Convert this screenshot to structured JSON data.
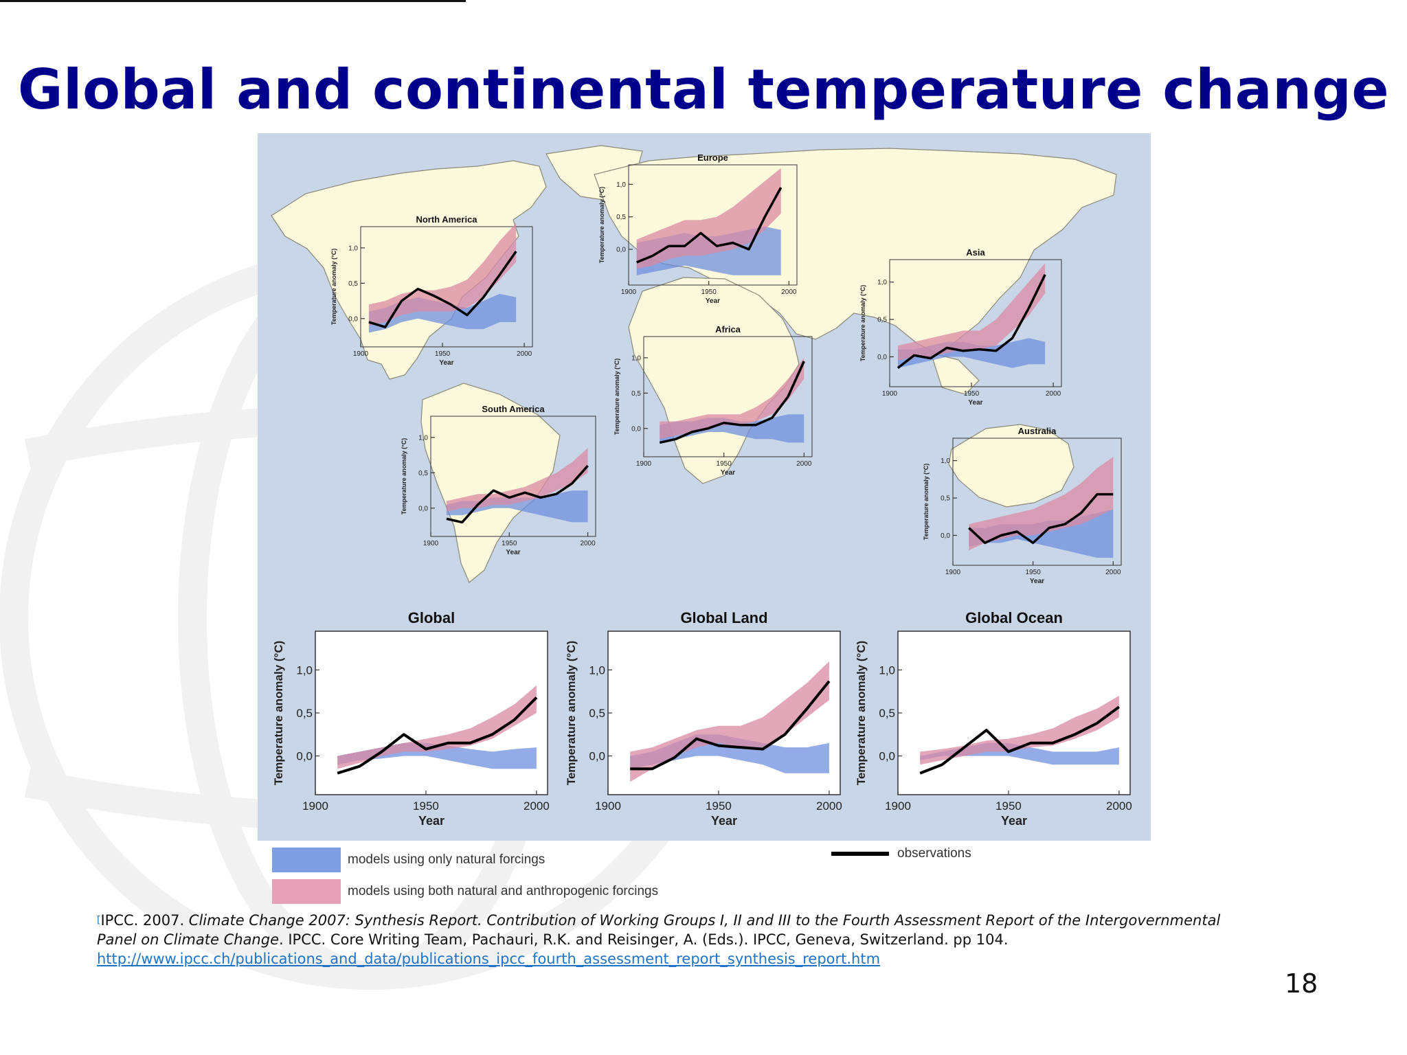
{
  "slide": {
    "title": "Global and continental temperature change",
    "page_number": "18"
  },
  "legend": {
    "natural": "models using only natural forcings",
    "both": "models using both natural and anthropogenic forcings",
    "obs": "observations"
  },
  "citation": {
    "marker": "[",
    "part1": "IPCC. 2007. ",
    "title_italic": "Climate Change 2007: Synthesis Report. Contribution of Working Groups I, II and III to the Fourth Assessment Report of the Intergovernmental Panel on Climate Change",
    "part2": ". IPCC. Core Writing Team, Pachauri, R.K. and Reisinger, A. (Eds.). IPCC, Geneva, Switzerland. pp 104. ",
    "link": "http://www.ipcc.ch/publications_and_data/publications_ipcc_fourth_assessment_report_synthesis_report.htm"
  },
  "colors": {
    "ocean": "#c9d6e8",
    "land": "#fdf9dc",
    "natural": "#6f8fde",
    "both": "#d98aa3",
    "title": "#00008b",
    "obs": "#000000"
  },
  "chart_data": [
    {
      "type": "area",
      "title": "North America",
      "xlabel": "Year",
      "ylabel": "Temperature anomaly (°C)",
      "xticks": [
        "1900",
        "1950",
        "2000"
      ],
      "yticks": [
        "0,0",
        "0,5",
        "1,0"
      ],
      "xlim": [
        1900,
        2005
      ],
      "ylim": [
        -0.4,
        1.3
      ],
      "x": [
        1905,
        1915,
        1925,
        1935,
        1945,
        1955,
        1965,
        1975,
        1985,
        1995
      ],
      "observations": [
        -0.05,
        -0.12,
        0.25,
        0.42,
        0.32,
        0.2,
        0.05,
        0.3,
        0.62,
        0.95
      ],
      "natural_low": [
        -0.2,
        -0.15,
        -0.05,
        0.0,
        -0.05,
        -0.1,
        -0.15,
        -0.15,
        -0.05,
        -0.05
      ],
      "natural_high": [
        0.1,
        0.15,
        0.25,
        0.3,
        0.25,
        0.2,
        0.15,
        0.25,
        0.35,
        0.3
      ],
      "both_low": [
        -0.1,
        -0.05,
        0.05,
        0.1,
        0.1,
        0.1,
        0.15,
        0.3,
        0.55,
        0.8
      ],
      "both_high": [
        0.2,
        0.25,
        0.35,
        0.4,
        0.4,
        0.45,
        0.55,
        0.8,
        1.1,
        1.35
      ]
    },
    {
      "type": "area",
      "title": "Europe",
      "xlabel": "Year",
      "ylabel": "Temperature anomaly (°C)",
      "xticks": [
        "1900",
        "1950",
        "2000"
      ],
      "yticks": [
        "0,0",
        "0,5",
        "1,0"
      ],
      "xlim": [
        1900,
        2005
      ],
      "ylim": [
        -0.55,
        1.3
      ],
      "x": [
        1905,
        1915,
        1925,
        1935,
        1945,
        1955,
        1965,
        1975,
        1985,
        1995
      ],
      "observations": [
        -0.2,
        -0.1,
        0.05,
        0.05,
        0.25,
        0.05,
        0.1,
        0.0,
        0.5,
        0.95
      ],
      "natural_low": [
        -0.4,
        -0.35,
        -0.3,
        -0.25,
        -0.3,
        -0.35,
        -0.4,
        -0.4,
        -0.4,
        -0.4
      ],
      "natural_high": [
        0.1,
        0.15,
        0.2,
        0.25,
        0.2,
        0.2,
        0.25,
        0.3,
        0.35,
        0.3
      ],
      "both_low": [
        -0.3,
        -0.25,
        -0.15,
        -0.1,
        -0.1,
        -0.05,
        0.0,
        0.1,
        0.3,
        0.55
      ],
      "both_high": [
        0.15,
        0.25,
        0.35,
        0.45,
        0.45,
        0.5,
        0.65,
        0.85,
        1.05,
        1.25
      ]
    },
    {
      "type": "area",
      "title": "Asia",
      "xlabel": "Year",
      "ylabel": "Temperature anomaly (°C)",
      "xticks": [
        "1900",
        "1950",
        "2000"
      ],
      "yticks": [
        "0,0",
        "0,5",
        "1,0"
      ],
      "xlim": [
        1900,
        2005
      ],
      "ylim": [
        -0.4,
        1.3
      ],
      "x": [
        1905,
        1915,
        1925,
        1935,
        1945,
        1955,
        1965,
        1975,
        1985,
        1995
      ],
      "observations": [
        -0.15,
        0.02,
        -0.02,
        0.12,
        0.08,
        0.1,
        0.08,
        0.25,
        0.65,
        1.1
      ],
      "natural_low": [
        -0.15,
        -0.1,
        -0.05,
        0.0,
        0.0,
        -0.05,
        -0.1,
        -0.15,
        -0.1,
        -0.1
      ],
      "natural_high": [
        0.1,
        0.1,
        0.15,
        0.2,
        0.2,
        0.15,
        0.15,
        0.2,
        0.25,
        0.2
      ],
      "both_low": [
        -0.05,
        0.0,
        0.0,
        0.05,
        0.1,
        0.1,
        0.15,
        0.35,
        0.55,
        0.85
      ],
      "both_high": [
        0.15,
        0.2,
        0.25,
        0.3,
        0.35,
        0.35,
        0.5,
        0.75,
        1.0,
        1.25
      ]
    },
    {
      "type": "area",
      "title": "Africa",
      "xlabel": "Year",
      "ylabel": "Temperature anomaly (°C)",
      "xticks": [
        "1900",
        "1950",
        "2000"
      ],
      "yticks": [
        "0,0",
        "0,5",
        "1,0"
      ],
      "xlim": [
        1900,
        2005
      ],
      "ylim": [
        -0.4,
        1.3
      ],
      "x": [
        1910,
        1920,
        1930,
        1940,
        1950,
        1960,
        1970,
        1980,
        1990,
        2000
      ],
      "observations": [
        -0.2,
        -0.15,
        -0.05,
        0.0,
        0.08,
        0.05,
        0.05,
        0.15,
        0.45,
        0.95
      ],
      "natural_low": [
        -0.2,
        -0.15,
        -0.1,
        -0.05,
        -0.05,
        -0.1,
        -0.15,
        -0.15,
        -0.2,
        -0.2
      ],
      "natural_high": [
        0.05,
        0.1,
        0.1,
        0.15,
        0.15,
        0.1,
        0.1,
        0.15,
        0.2,
        0.2
      ],
      "both_low": [
        -0.15,
        -0.1,
        -0.05,
        0.0,
        0.05,
        0.05,
        0.1,
        0.2,
        0.4,
        0.7
      ],
      "both_high": [
        0.1,
        0.1,
        0.15,
        0.2,
        0.2,
        0.2,
        0.3,
        0.45,
        0.7,
        1.0
      ]
    },
    {
      "type": "area",
      "title": "South America",
      "xlabel": "Year",
      "ylabel": "Temperature anomaly (°C)",
      "xticks": [
        "1900",
        "1950",
        "2000"
      ],
      "yticks": [
        "0,0",
        "0,5",
        "1,0"
      ],
      "xlim": [
        1900,
        2005
      ],
      "ylim": [
        -0.4,
        1.3
      ],
      "x": [
        1910,
        1920,
        1930,
        1940,
        1950,
        1960,
        1970,
        1980,
        1990,
        2000
      ],
      "observations": [
        -0.15,
        -0.2,
        0.05,
        0.25,
        0.15,
        0.22,
        0.15,
        0.2,
        0.35,
        0.6
      ],
      "natural_low": [
        -0.1,
        -0.1,
        -0.05,
        0.0,
        0.0,
        -0.05,
        -0.1,
        -0.15,
        -0.2,
        -0.2
      ],
      "natural_high": [
        0.05,
        0.1,
        0.1,
        0.15,
        0.15,
        0.15,
        0.15,
        0.2,
        0.25,
        0.25
      ],
      "both_low": [
        -0.05,
        0.0,
        0.0,
        0.05,
        0.05,
        0.1,
        0.15,
        0.25,
        0.35,
        0.5
      ],
      "both_high": [
        0.1,
        0.15,
        0.2,
        0.2,
        0.25,
        0.3,
        0.4,
        0.5,
        0.65,
        0.85
      ]
    },
    {
      "type": "area",
      "title": "Australia",
      "xlabel": "Year",
      "ylabel": "Temperature anomaly (°C)",
      "xticks": [
        "1900",
        "1950",
        "2000"
      ],
      "yticks": [
        "0,0",
        "0,5",
        "1,0"
      ],
      "xlim": [
        1900,
        2005
      ],
      "ylim": [
        -0.4,
        1.3
      ],
      "x": [
        1910,
        1920,
        1930,
        1940,
        1950,
        1960,
        1970,
        1980,
        1990,
        2000
      ],
      "observations": [
        0.1,
        -0.1,
        0.0,
        0.05,
        -0.1,
        0.1,
        0.15,
        0.3,
        0.55,
        0.55
      ],
      "natural_low": [
        -0.15,
        -0.1,
        -0.1,
        -0.05,
        -0.1,
        -0.15,
        -0.2,
        -0.25,
        -0.3,
        -0.3
      ],
      "natural_high": [
        0.1,
        0.1,
        0.15,
        0.15,
        0.15,
        0.2,
        0.2,
        0.25,
        0.3,
        0.35
      ],
      "both_low": [
        -0.2,
        -0.1,
        -0.05,
        0.0,
        0.0,
        0.05,
        0.1,
        0.15,
        0.25,
        0.35
      ],
      "both_high": [
        0.15,
        0.2,
        0.25,
        0.3,
        0.35,
        0.45,
        0.55,
        0.7,
        0.9,
        1.05
      ]
    },
    {
      "type": "area",
      "title": "Global",
      "xlabel": "Year",
      "ylabel": "Temperature anomaly (°C)",
      "xticks": [
        "1900",
        "1950",
        "2000"
      ],
      "yticks": [
        "0,0",
        "0,5",
        "1,0"
      ],
      "xlim": [
        1900,
        2005
      ],
      "ylim": [
        -0.45,
        1.45
      ],
      "x": [
        1910,
        1920,
        1930,
        1940,
        1950,
        1960,
        1970,
        1980,
        1990,
        2000
      ],
      "observations": [
        -0.2,
        -0.12,
        0.05,
        0.25,
        0.08,
        0.15,
        0.15,
        0.25,
        0.42,
        0.68
      ],
      "natural_low": [
        -0.1,
        -0.05,
        -0.03,
        0.0,
        0.0,
        -0.05,
        -0.1,
        -0.15,
        -0.15,
        -0.15
      ],
      "natural_high": [
        0.0,
        0.05,
        0.1,
        0.15,
        0.15,
        0.12,
        0.08,
        0.05,
        0.08,
        0.1
      ],
      "both_low": [
        -0.15,
        -0.08,
        0.0,
        0.05,
        0.05,
        0.08,
        0.12,
        0.2,
        0.35,
        0.5
      ],
      "both_high": [
        0.0,
        0.05,
        0.1,
        0.15,
        0.2,
        0.25,
        0.32,
        0.45,
        0.6,
        0.82
      ]
    },
    {
      "type": "area",
      "title": "Global Land",
      "xlabel": "Year",
      "ylabel": "Temperature anomaly (°C)",
      "xticks": [
        "1900",
        "1950",
        "2000"
      ],
      "yticks": [
        "0,0",
        "0,5",
        "1,0"
      ],
      "xlim": [
        1900,
        2005
      ],
      "ylim": [
        -0.45,
        1.45
      ],
      "x": [
        1910,
        1920,
        1930,
        1940,
        1950,
        1960,
        1970,
        1980,
        1990,
        2000
      ],
      "observations": [
        -0.15,
        -0.15,
        -0.02,
        0.2,
        0.12,
        0.1,
        0.08,
        0.25,
        0.55,
        0.87
      ],
      "natural_low": [
        -0.15,
        -0.1,
        -0.05,
        0.0,
        0.0,
        -0.05,
        -0.1,
        -0.2,
        -0.2,
        -0.2
      ],
      "natural_high": [
        0.0,
        0.05,
        0.15,
        0.25,
        0.25,
        0.2,
        0.15,
        0.1,
        0.1,
        0.15
      ],
      "both_low": [
        -0.3,
        -0.15,
        0.0,
        0.1,
        0.15,
        0.1,
        0.1,
        0.25,
        0.45,
        0.65
      ],
      "both_high": [
        0.05,
        0.1,
        0.2,
        0.3,
        0.35,
        0.35,
        0.45,
        0.65,
        0.85,
        1.1
      ]
    },
    {
      "type": "area",
      "title": "Global Ocean",
      "xlabel": "Year",
      "ylabel": "Temperature anomaly (°C)",
      "xticks": [
        "1900",
        "1950",
        "2000"
      ],
      "yticks": [
        "0,0",
        "0,5",
        "1,0"
      ],
      "xlim": [
        1900,
        2005
      ],
      "ylim": [
        -0.45,
        1.45
      ],
      "x": [
        1910,
        1920,
        1930,
        1940,
        1950,
        1960,
        1970,
        1980,
        1990,
        2000
      ],
      "observations": [
        -0.2,
        -0.1,
        0.1,
        0.3,
        0.05,
        0.15,
        0.15,
        0.25,
        0.38,
        0.57
      ],
      "natural_low": [
        -0.05,
        0.0,
        0.0,
        0.0,
        0.0,
        -0.05,
        -0.1,
        -0.1,
        -0.1,
        -0.1
      ],
      "natural_high": [
        0.0,
        0.05,
        0.1,
        0.15,
        0.15,
        0.1,
        0.05,
        0.05,
        0.05,
        0.1
      ],
      "both_low": [
        -0.1,
        -0.05,
        0.0,
        0.05,
        0.05,
        0.1,
        0.12,
        0.2,
        0.3,
        0.45
      ],
      "both_high": [
        0.05,
        0.08,
        0.12,
        0.18,
        0.2,
        0.25,
        0.32,
        0.45,
        0.55,
        0.7
      ]
    }
  ]
}
